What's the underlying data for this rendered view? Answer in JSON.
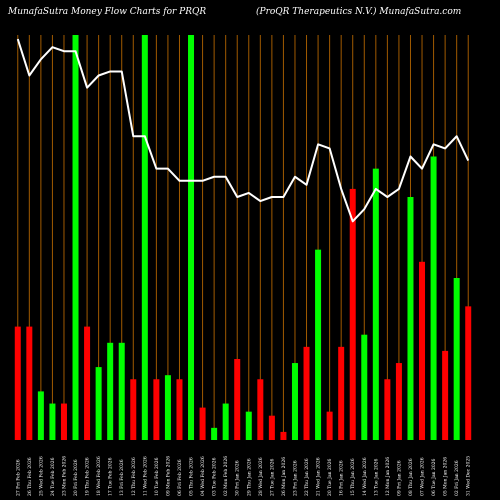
{
  "title_left": "MunafaSutra  Money Flow  Charts for PRQR",
  "title_right": "(ProQR Therapeutics N.V.) MunafaSutra.com",
  "chart_data": {
    "type": "bar",
    "ylim": [
      0,
      100
    ],
    "colors": {
      "up": "#00ff00",
      "down": "#ff0000",
      "line": "#ffffff",
      "grid": "#a05a00",
      "background": "#000000"
    },
    "bars": [
      {
        "date": "27 Fri Feb 2026",
        "value": 28,
        "color": "down"
      },
      {
        "date": "26 Thu Feb 2026",
        "value": 28,
        "color": "down"
      },
      {
        "date": "25 Wed Feb 2026",
        "value": 12,
        "color": "up"
      },
      {
        "date": "24 Tue Feb 2026",
        "value": 9,
        "color": "up"
      },
      {
        "date": "23 Mon Feb 2026",
        "value": 9,
        "color": "down"
      },
      {
        "date": "20 Fri Feb 2026",
        "value": 100,
        "color": "up"
      },
      {
        "date": "19 Thu Feb 2026",
        "value": 28,
        "color": "down"
      },
      {
        "date": "18 Wed Feb 2026",
        "value": 18,
        "color": "up"
      },
      {
        "date": "17 Tue Feb 2026",
        "value": 24,
        "color": "up"
      },
      {
        "date": "13 Fri Feb 2026",
        "value": 24,
        "color": "up"
      },
      {
        "date": "12 Thu Feb 2026",
        "value": 15,
        "color": "down"
      },
      {
        "date": "11 Wed Feb 2026",
        "value": 100,
        "color": "up"
      },
      {
        "date": "10 Tue Feb 2026",
        "value": 15,
        "color": "down"
      },
      {
        "date": "09 Mon Feb 2026",
        "value": 16,
        "color": "up"
      },
      {
        "date": "06 Fri Feb 2026",
        "value": 15,
        "color": "down"
      },
      {
        "date": "05 Thu Feb 2026",
        "value": 100,
        "color": "up"
      },
      {
        "date": "04 Wed Feb 2026",
        "value": 8,
        "color": "down"
      },
      {
        "date": "03 Tue Feb 2026",
        "value": 3,
        "color": "up"
      },
      {
        "date": "02 Mon Feb 2026",
        "value": 9,
        "color": "up"
      },
      {
        "date": "30 Fri Jan 2026",
        "value": 20,
        "color": "down"
      },
      {
        "date": "29 Thu Jan 2026",
        "value": 7,
        "color": "up"
      },
      {
        "date": "28 Wed Jan 2026",
        "value": 15,
        "color": "down"
      },
      {
        "date": "27 Tue Jan 2026",
        "value": 6,
        "color": "down"
      },
      {
        "date": "26 Mon Jan 2026",
        "value": 2,
        "color": "down"
      },
      {
        "date": "23 Fri Jan 2026",
        "value": 19,
        "color": "up"
      },
      {
        "date": "22 Thu Jan 2026",
        "value": 23,
        "color": "down"
      },
      {
        "date": "21 Wed Jan 2026",
        "value": 47,
        "color": "up"
      },
      {
        "date": "20 Tue Jan 2026",
        "value": 7,
        "color": "down"
      },
      {
        "date": "16 Fri Jan 2026",
        "value": 23,
        "color": "down"
      },
      {
        "date": "15 Thu Jan 2026",
        "value": 62,
        "color": "down"
      },
      {
        "date": "14 Wed Jan 2026",
        "value": 26,
        "color": "up"
      },
      {
        "date": "13 Tue Jan 2026",
        "value": 67,
        "color": "up"
      },
      {
        "date": "12 Mon Jan 2026",
        "value": 15,
        "color": "down"
      },
      {
        "date": "09 Fri Jan 2026",
        "value": 19,
        "color": "down"
      },
      {
        "date": "08 Thu Jan 2026",
        "value": 60,
        "color": "up"
      },
      {
        "date": "07 Wed Jan 2026",
        "value": 44,
        "color": "down"
      },
      {
        "date": "06 Tue Jan 2026",
        "value": 70,
        "color": "up"
      },
      {
        "date": "05 Mon Jan 2026",
        "value": 22,
        "color": "down"
      },
      {
        "date": "02 Fri Jan 2026",
        "value": 40,
        "color": "up"
      },
      {
        "date": "31 Wed Dec 2025",
        "value": 33,
        "color": "down"
      }
    ],
    "line": [
      99,
      90,
      94,
      97,
      96,
      96,
      87,
      90,
      91,
      91,
      75,
      75,
      67,
      67,
      64,
      64,
      64,
      65,
      65,
      60,
      61,
      59,
      60,
      60,
      65,
      63,
      73,
      72,
      62,
      54,
      57,
      62,
      60,
      62,
      70,
      67,
      73,
      72,
      75,
      69
    ]
  }
}
